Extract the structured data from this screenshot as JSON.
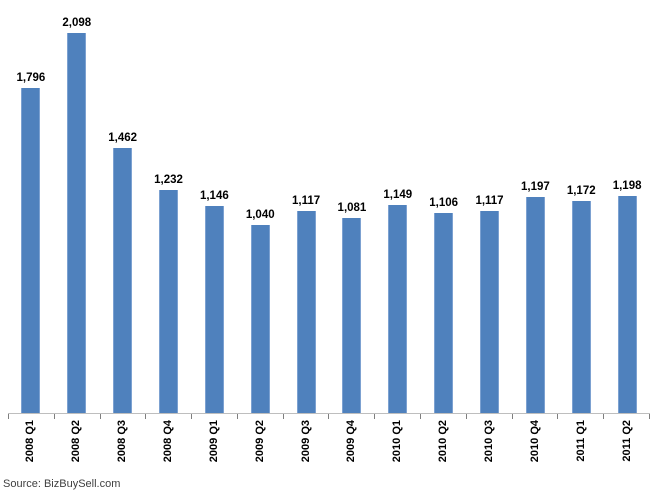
{
  "chart_data": {
    "type": "bar",
    "title": "",
    "xlabel": "",
    "ylabel": "",
    "categories": [
      "2008 Q1",
      "2008 Q2",
      "2008 Q3",
      "2008 Q4",
      "2009 Q1",
      "2009 Q2",
      "2009 Q3",
      "2009 Q4",
      "2010 Q1",
      "2010 Q2",
      "2010 Q3",
      "2010 Q4",
      "2011 Q1",
      "2011 Q2"
    ],
    "values": [
      1796,
      2098,
      1462,
      1232,
      1146,
      1040,
      1117,
      1081,
      1149,
      1106,
      1117,
      1197,
      1172,
      1198
    ],
    "value_labels": [
      "1,796",
      "2,098",
      "1,462",
      "1,232",
      "1,146",
      "1,040",
      "1,117",
      "1,081",
      "1,149",
      "1,106",
      "1,117",
      "1,197",
      "1,172",
      "1,198"
    ],
    "ylim": [
      0,
      2098
    ],
    "grid": false,
    "legend": false,
    "source": "Source: BizBuySell.com",
    "colors": {
      "bar_fill": "#4F81BD",
      "bar_edge": "#7CA1D1",
      "axis_line": "#BEBEBE",
      "tick": "#7F7F7F",
      "label_text": "#000000",
      "source_text": "#3F3F3F"
    }
  }
}
